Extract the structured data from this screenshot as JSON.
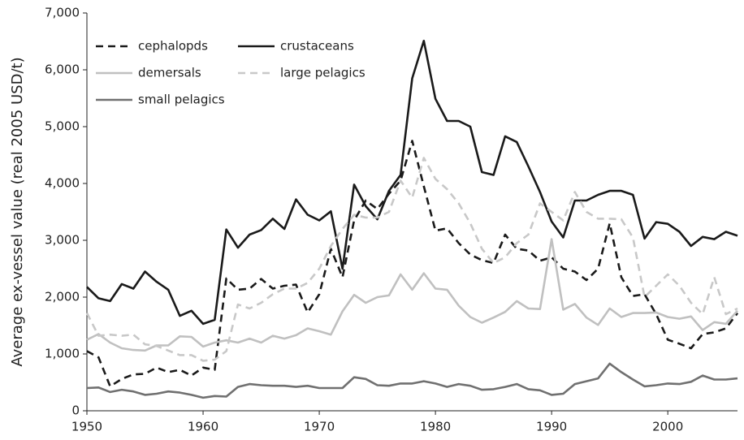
{
  "chart_data": {
    "type": "line",
    "y_label": "Average ex-vessel value (real 2005 USD/t)",
    "x": [
      1950,
      1951,
      1952,
      1953,
      1954,
      1955,
      1956,
      1957,
      1958,
      1959,
      1960,
      1961,
      1962,
      1963,
      1964,
      1965,
      1966,
      1967,
      1968,
      1969,
      1970,
      1971,
      1972,
      1973,
      1974,
      1975,
      1976,
      1977,
      1978,
      1979,
      1980,
      1981,
      1982,
      1983,
      1984,
      1985,
      1986,
      1987,
      1988,
      1989,
      1990,
      1991,
      1992,
      1993,
      1994,
      1995,
      1996,
      1997,
      1998,
      1999,
      2000,
      2001,
      2002,
      2003,
      2004,
      2005,
      2006
    ],
    "xlim": [
      1950,
      2006
    ],
    "xticks": [
      1950,
      1960,
      1970,
      1980,
      1990,
      2000
    ],
    "ylim": [
      0,
      7000
    ],
    "yticks": [
      0,
      {
        "value": 1000,
        "label": "1,000"
      },
      {
        "value": 2000,
        "label": "2,000"
      },
      {
        "value": 3000,
        "label": "3,000"
      },
      {
        "value": 4000,
        "label": "4,000"
      },
      {
        "value": 5000,
        "label": "5,000"
      },
      {
        "value": 6000,
        "label": "6,000"
      },
      {
        "value": 7000,
        "label": "7,000"
      }
    ],
    "grid": false,
    "series": [
      {
        "name": "cephalopds",
        "color": "#1a1a1a",
        "line_style": "dashed",
        "values": [
          1050,
          940,
          430,
          560,
          640,
          650,
          760,
          680,
          720,
          620,
          760,
          720,
          2330,
          2130,
          2150,
          2320,
          2150,
          2200,
          2220,
          1730,
          2050,
          2850,
          2350,
          3350,
          3700,
          3550,
          3820,
          4050,
          4750,
          3950,
          3170,
          3210,
          2950,
          2750,
          2650,
          2600,
          3100,
          2850,
          2820,
          2640,
          2700,
          2500,
          2450,
          2300,
          2500,
          3300,
          2350,
          2020,
          2050,
          1700,
          1250,
          1180,
          1100,
          1350,
          1380,
          1450,
          1720
        ]
      },
      {
        "name": "crustaceans",
        "color": "#1a1a1a",
        "line_style": "solid",
        "values": [
          2180,
          1980,
          1930,
          2230,
          2150,
          2450,
          2270,
          2130,
          1670,
          1760,
          1530,
          1600,
          3190,
          2870,
          3100,
          3180,
          3380,
          3200,
          3720,
          3450,
          3350,
          3510,
          2500,
          3980,
          3600,
          3370,
          3870,
          4150,
          5850,
          6510,
          5490,
          5100,
          5100,
          5000,
          4200,
          4150,
          4830,
          4730,
          4300,
          3850,
          3330,
          3050,
          3700,
          3700,
          3800,
          3870,
          3870,
          3800,
          3030,
          3320,
          3290,
          3150,
          2900,
          3060,
          3020,
          3150,
          3080
        ]
      },
      {
        "name": "demersals",
        "color": "#c0c0c0",
        "line_style": "solid",
        "values": [
          1250,
          1350,
          1200,
          1100,
          1070,
          1060,
          1150,
          1150,
          1310,
          1300,
          1130,
          1200,
          1240,
          1200,
          1270,
          1200,
          1320,
          1270,
          1330,
          1450,
          1400,
          1340,
          1750,
          2040,
          1900,
          2000,
          2030,
          2400,
          2130,
          2420,
          2150,
          2130,
          1850,
          1650,
          1550,
          1640,
          1740,
          1930,
          1800,
          1790,
          3020,
          1780,
          1880,
          1640,
          1510,
          1800,
          1650,
          1720,
          1720,
          1730,
          1650,
          1620,
          1660,
          1420,
          1560,
          1530,
          1760
        ]
      },
      {
        "name": "large pelagics",
        "color": "#c8c8c8",
        "line_style": "dashed",
        "values": [
          1720,
          1320,
          1340,
          1320,
          1340,
          1170,
          1140,
          1060,
          980,
          980,
          880,
          900,
          1050,
          1870,
          1800,
          1900,
          2050,
          2150,
          2150,
          2250,
          2500,
          2900,
          3200,
          3450,
          3400,
          3400,
          3500,
          4050,
          3750,
          4450,
          4080,
          3900,
          3650,
          3300,
          2850,
          2600,
          2700,
          2950,
          3100,
          3650,
          3500,
          3350,
          3850,
          3500,
          3380,
          3380,
          3370,
          3050,
          2000,
          2200,
          2400,
          2200,
          1900,
          1700,
          2350,
          1700,
          1800
        ]
      },
      {
        "name": "small pelagics",
        "color": "#707070",
        "line_style": "solid",
        "values": [
          400,
          410,
          330,
          370,
          340,
          280,
          300,
          340,
          320,
          280,
          230,
          260,
          250,
          420,
          470,
          450,
          440,
          440,
          420,
          440,
          400,
          400,
          400,
          590,
          560,
          450,
          440,
          480,
          480,
          520,
          480,
          420,
          470,
          440,
          370,
          380,
          420,
          470,
          380,
          360,
          280,
          300,
          470,
          520,
          570,
          830,
          680,
          550,
          430,
          450,
          480,
          470,
          510,
          620,
          550,
          550,
          570
        ]
      }
    ]
  }
}
